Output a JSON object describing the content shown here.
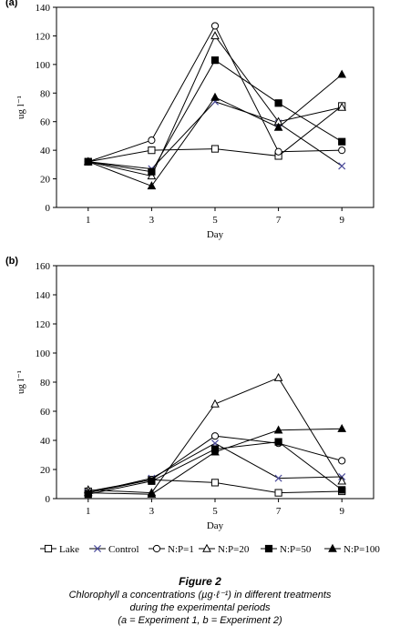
{
  "colors": {
    "ink": "#000000",
    "background": "#ffffff",
    "control_marker": "#4b4b9b"
  },
  "legend": {
    "items": [
      {
        "name": "Lake",
        "marker": "open-square"
      },
      {
        "name": "Control",
        "marker": "x"
      },
      {
        "name": "N:P=1",
        "marker": "open-circle"
      },
      {
        "name": "N:P=20",
        "marker": "open-triangle"
      },
      {
        "name": "N:P=50",
        "marker": "filled-square"
      },
      {
        "name": "N:P=100",
        "marker": "filled-triangle"
      }
    ]
  },
  "caption": {
    "title": "Figure 2",
    "line1": "Chlorophyll a concentrations (µg·ℓ⁻¹) in different treatments",
    "line2": "during the experimental periods",
    "line3": "(a = Experiment 1, b = Experiment 2)"
  },
  "chart_data": [
    {
      "panel_label": "(a)",
      "type": "line",
      "xlabel": "Day",
      "ylabel": "ug l⁻¹",
      "x": [
        1,
        3,
        5,
        7,
        9
      ],
      "xlim": [
        0,
        10
      ],
      "xticks": [
        "1",
        "3",
        "5",
        "7",
        "9"
      ],
      "ylim": [
        0,
        140
      ],
      "yticks": [
        "0",
        "20",
        "40",
        "60",
        "80",
        "100",
        "120",
        "140"
      ],
      "grid": false,
      "series": [
        {
          "name": "Lake",
          "values": [
            32,
            40,
            41,
            36,
            71
          ]
        },
        {
          "name": "Control",
          "values": [
            32,
            27,
            74,
            59,
            29
          ]
        },
        {
          "name": "N:P=1",
          "values": [
            32,
            47,
            127,
            39,
            40
          ]
        },
        {
          "name": "N:P=20",
          "values": [
            32,
            22,
            120,
            60,
            70
          ]
        },
        {
          "name": "N:P=50",
          "values": [
            32,
            25,
            103,
            73,
            46
          ]
        },
        {
          "name": "N:P=100",
          "values": [
            32,
            15,
            77,
            56,
            93
          ]
        }
      ]
    },
    {
      "panel_label": "(b)",
      "type": "line",
      "xlabel": "Day",
      "ylabel": "ug l⁻¹",
      "x": [
        1,
        3,
        5,
        7,
        9
      ],
      "xlim": [
        0,
        10
      ],
      "xticks": [
        "1",
        "3",
        "5",
        "7",
        "9"
      ],
      "ylim": [
        0,
        160
      ],
      "yticks": [
        "0",
        "20",
        "40",
        "60",
        "80",
        "100",
        "120",
        "140",
        "160"
      ],
      "grid": false,
      "series": [
        {
          "name": "Lake",
          "values": [
            5,
            13,
            11,
            4,
            5
          ]
        },
        {
          "name": "Control",
          "values": [
            4,
            14,
            38,
            14,
            15
          ]
        },
        {
          "name": "N:P=1",
          "values": [
            4,
            13,
            43,
            38,
            26
          ]
        },
        {
          "name": "N:P=20",
          "values": [
            6,
            4,
            65,
            83,
            12
          ]
        },
        {
          "name": "N:P=50",
          "values": [
            3,
            12,
            34,
            39,
            6
          ]
        },
        {
          "name": "N:P=100",
          "values": [
            4,
            3,
            32,
            47,
            48
          ]
        }
      ]
    }
  ]
}
